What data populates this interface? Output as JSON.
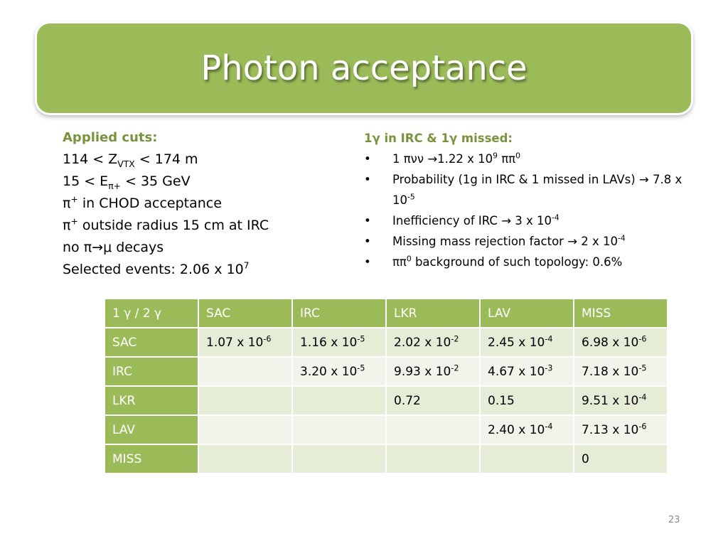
{
  "title": "Photon acceptance",
  "left": {
    "heading": "Applied cuts:",
    "lines": [
      [
        {
          "text": "114 < Z"
        },
        {
          "sub": "VTX"
        },
        {
          "text": " < 174 m"
        }
      ],
      [
        {
          "text": "15 < E"
        },
        {
          "sub": "π+"
        },
        {
          "text": " < 35 GeV"
        }
      ],
      [
        {
          "text": "π"
        },
        {
          "sup": "+"
        },
        {
          "text": " in CHOD acceptance"
        }
      ],
      [
        {
          "text": "π"
        },
        {
          "sup": "+"
        },
        {
          "text": " outside radius 15 cm at IRC"
        }
      ],
      [
        {
          "text": "no π→μ decays"
        }
      ],
      [
        {
          "text": "Selected events: 2.06 x 10"
        },
        {
          "sup": "7"
        }
      ]
    ]
  },
  "right": {
    "heading": "1γ in IRC & 1γ missed:",
    "bullets": [
      [
        {
          "text": "1 πνν →1.22 x 10"
        },
        {
          "sup": "9"
        },
        {
          "text": " ππ"
        },
        {
          "sup": "0"
        }
      ],
      [
        {
          "text": "Probability (1g in IRC & 1 missed in LAVs) → 7.8 x 10"
        },
        {
          "sup": "-5"
        }
      ],
      [
        {
          "text": "Inefficiency of IRC → 3 x 10"
        },
        {
          "sup": "-4"
        }
      ],
      [
        {
          "text": "Missing mass rejection factor → 2 x 10"
        },
        {
          "sup": "-4"
        }
      ],
      [
        {
          "text": "ππ"
        },
        {
          "sup": "0"
        },
        {
          "text": " background of such topology: 0.6%"
        }
      ]
    ]
  },
  "table": {
    "header": [
      "1 γ / 2 γ",
      "SAC",
      "IRC",
      "LKR",
      "LAV",
      "MISS"
    ],
    "rows": [
      [
        "SAC",
        {
          "base": "1.07 x 10",
          "exp": "-6"
        },
        {
          "base": "1.16 x 10",
          "exp": "-5"
        },
        {
          "base": "2.02 x 10",
          "exp": "-2"
        },
        {
          "base": "2.45 x 10",
          "exp": "-4"
        },
        {
          "base": "6.98 x 10",
          "exp": "-6"
        }
      ],
      [
        "IRC",
        null,
        {
          "base": "3.20 x 10",
          "exp": "-5"
        },
        {
          "base": "9.93 x 10",
          "exp": "-2"
        },
        {
          "base": "4.67 x 10",
          "exp": "-3"
        },
        {
          "base": "7.18 x 10",
          "exp": "-5"
        }
      ],
      [
        "LKR",
        null,
        null,
        "0.72",
        "0.15",
        {
          "base": "9.51 x 10",
          "exp": "-4"
        }
      ],
      [
        "LAV",
        null,
        null,
        null,
        {
          "base": "2.40 x 10",
          "exp": "-4"
        },
        {
          "base": "7.13 x 10",
          "exp": "-6"
        }
      ],
      [
        "MISS",
        null,
        null,
        null,
        null,
        "0"
      ]
    ]
  },
  "page_number": "23"
}
